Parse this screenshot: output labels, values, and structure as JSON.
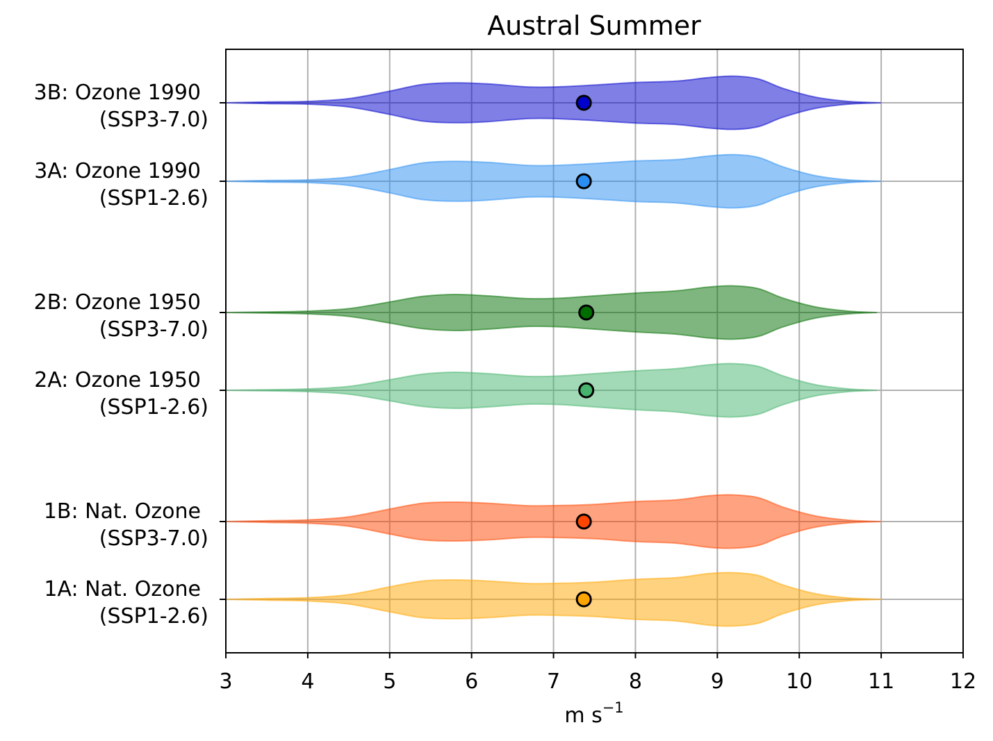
{
  "chart_data": {
    "type": "violin",
    "title": "Austral Summer",
    "xlabel": "m s",
    "xlabel_superscript": "−1",
    "xlim": [
      3,
      12
    ],
    "xticks": [
      3,
      4,
      5,
      6,
      7,
      8,
      9,
      10,
      11,
      12
    ],
    "grid": true,
    "orientation": "horizontal",
    "series": [
      {
        "label_line1": "3B: Ozone 1990",
        "label_line2": "(SSP3-7.0)",
        "color": "#0000cc",
        "dot_color": "#0000cc",
        "mean": 7.37,
        "density": [
          [
            3.0,
            0.0
          ],
          [
            3.5,
            0.03
          ],
          [
            4.0,
            0.05
          ],
          [
            4.5,
            0.15
          ],
          [
            5.0,
            0.42
          ],
          [
            5.4,
            0.66
          ],
          [
            5.8,
            0.72
          ],
          [
            6.2,
            0.68
          ],
          [
            6.7,
            0.57
          ],
          [
            7.1,
            0.58
          ],
          [
            7.5,
            0.64
          ],
          [
            8.0,
            0.73
          ],
          [
            8.5,
            0.78
          ],
          [
            8.9,
            0.91
          ],
          [
            9.2,
            0.96
          ],
          [
            9.5,
            0.86
          ],
          [
            9.8,
            0.52
          ],
          [
            10.2,
            0.2
          ],
          [
            10.6,
            0.05
          ],
          [
            11.0,
            0.0
          ]
        ]
      },
      {
        "label_line1": "3A: Ozone 1990",
        "label_line2": "(SSP1-2.6)",
        "color": "#2a8ef2",
        "dot_color": "#2a8ef2",
        "mean": 7.37,
        "density": [
          [
            3.0,
            0.0
          ],
          [
            3.5,
            0.03
          ],
          [
            4.0,
            0.05
          ],
          [
            4.5,
            0.15
          ],
          [
            5.0,
            0.42
          ],
          [
            5.4,
            0.66
          ],
          [
            5.8,
            0.72
          ],
          [
            6.2,
            0.68
          ],
          [
            6.7,
            0.57
          ],
          [
            7.1,
            0.58
          ],
          [
            7.5,
            0.64
          ],
          [
            8.0,
            0.73
          ],
          [
            8.5,
            0.78
          ],
          [
            8.9,
            0.91
          ],
          [
            9.2,
            0.96
          ],
          [
            9.5,
            0.86
          ],
          [
            9.8,
            0.52
          ],
          [
            10.2,
            0.2
          ],
          [
            10.6,
            0.05
          ],
          [
            11.0,
            0.0
          ]
        ]
      },
      {
        "label_line1": "2B: Ozone 1950",
        "label_line2": "(SSP3-7.0)",
        "color": "#006d00",
        "dot_color": "#006d00",
        "mean": 7.4,
        "density": [
          [
            3.0,
            0.0
          ],
          [
            3.5,
            0.02
          ],
          [
            4.0,
            0.05
          ],
          [
            4.5,
            0.14
          ],
          [
            5.0,
            0.38
          ],
          [
            5.4,
            0.58
          ],
          [
            5.8,
            0.65
          ],
          [
            6.2,
            0.6
          ],
          [
            6.7,
            0.5
          ],
          [
            7.1,
            0.52
          ],
          [
            7.5,
            0.6
          ],
          [
            8.0,
            0.7
          ],
          [
            8.5,
            0.78
          ],
          [
            8.9,
            0.92
          ],
          [
            9.2,
            0.96
          ],
          [
            9.5,
            0.86
          ],
          [
            9.8,
            0.52
          ],
          [
            10.2,
            0.2
          ],
          [
            10.6,
            0.05
          ],
          [
            10.95,
            0.0
          ]
        ]
      },
      {
        "label_line1": "2A: Ozone 1950",
        "label_line2": "(SSP1-2.6)",
        "color": "#46b46e",
        "dot_color": "#46b46e",
        "mean": 7.4,
        "density": [
          [
            3.0,
            0.0
          ],
          [
            3.5,
            0.02
          ],
          [
            4.0,
            0.05
          ],
          [
            4.5,
            0.14
          ],
          [
            5.0,
            0.38
          ],
          [
            5.4,
            0.58
          ],
          [
            5.8,
            0.65
          ],
          [
            6.2,
            0.6
          ],
          [
            6.7,
            0.5
          ],
          [
            7.1,
            0.52
          ],
          [
            7.5,
            0.6
          ],
          [
            8.0,
            0.7
          ],
          [
            8.5,
            0.78
          ],
          [
            8.9,
            0.92
          ],
          [
            9.2,
            0.96
          ],
          [
            9.5,
            0.86
          ],
          [
            9.8,
            0.52
          ],
          [
            10.2,
            0.2
          ],
          [
            10.6,
            0.05
          ],
          [
            10.95,
            0.0
          ]
        ]
      },
      {
        "label_line1": "1B: Nat. Ozone",
        "label_line2": "(SSP3-7.0)",
        "color": "#ff4500",
        "dot_color": "#ff4500",
        "mean": 7.37,
        "density": [
          [
            3.0,
            0.0
          ],
          [
            3.5,
            0.03
          ],
          [
            4.0,
            0.06
          ],
          [
            4.5,
            0.17
          ],
          [
            5.0,
            0.45
          ],
          [
            5.4,
            0.66
          ],
          [
            5.8,
            0.7
          ],
          [
            6.2,
            0.66
          ],
          [
            6.7,
            0.57
          ],
          [
            7.1,
            0.58
          ],
          [
            7.5,
            0.62
          ],
          [
            8.0,
            0.72
          ],
          [
            8.5,
            0.78
          ],
          [
            8.9,
            0.93
          ],
          [
            9.2,
            0.96
          ],
          [
            9.5,
            0.86
          ],
          [
            9.8,
            0.52
          ],
          [
            10.2,
            0.2
          ],
          [
            10.6,
            0.05
          ],
          [
            11.0,
            0.0
          ]
        ]
      },
      {
        "label_line1": "1A: Nat. Ozone",
        "label_line2": "(SSP1-2.6)",
        "color": "#ffa500",
        "dot_color": "#ffa500",
        "mean": 7.37,
        "density": [
          [
            3.0,
            0.0
          ],
          [
            3.5,
            0.03
          ],
          [
            4.0,
            0.06
          ],
          [
            4.5,
            0.17
          ],
          [
            5.0,
            0.45
          ],
          [
            5.4,
            0.66
          ],
          [
            5.8,
            0.7
          ],
          [
            6.2,
            0.66
          ],
          [
            6.7,
            0.57
          ],
          [
            7.1,
            0.58
          ],
          [
            7.5,
            0.62
          ],
          [
            8.0,
            0.72
          ],
          [
            8.5,
            0.78
          ],
          [
            8.9,
            0.93
          ],
          [
            9.2,
            0.96
          ],
          [
            9.5,
            0.86
          ],
          [
            9.8,
            0.52
          ],
          [
            10.2,
            0.2
          ],
          [
            10.6,
            0.05
          ],
          [
            11.0,
            0.0
          ]
        ]
      }
    ]
  }
}
